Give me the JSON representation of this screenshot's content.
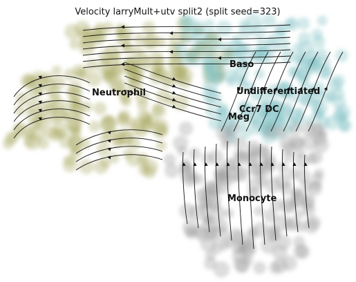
{
  "chart_data": {
    "type": "scatter",
    "title": "Velocity larryMult+utv split2 (split seed=323)",
    "xlabel": "",
    "ylabel": "",
    "axes_visible": false,
    "grid": false,
    "legend": "on data",
    "overlay": "velocity streamlines",
    "clusters": [
      {
        "name": "Baso",
        "color": "#aaa964"
      },
      {
        "name": "Undifferentiated",
        "color": "#7fbfc3"
      },
      {
        "name": "Neutrophil",
        "color": "#aaa964"
      },
      {
        "name": "Ccr7 DC",
        "color": "#7fbfc3"
      },
      {
        "name": "Meg",
        "color": "#aaa964"
      },
      {
        "name": "Monocyte",
        "color": "#9e9e9e"
      }
    ]
  }
}
